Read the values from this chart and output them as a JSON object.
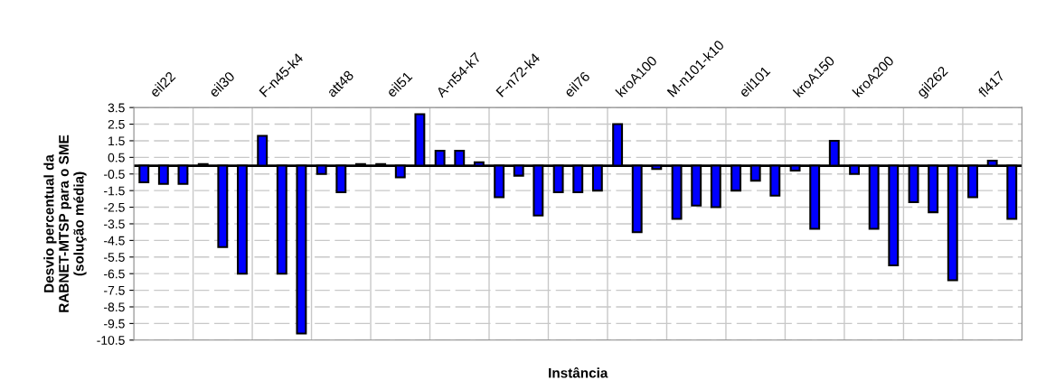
{
  "chart_data": {
    "type": "bar",
    "xlabel": "Instância",
    "ylabel": "Desvio percentual da\nRABNET-MTSP para o SME\n(solução média)",
    "categories": [
      "eil22",
      "eil30",
      "F-n45-k4",
      "att48",
      "eil51",
      "A-n54-k7",
      "F-n72-k4",
      "eil76",
      "kroA100",
      "M-n101-k10",
      "eil101",
      "kroA150",
      "kroA200",
      "gil262",
      "fl417"
    ],
    "series": [
      {
        "color": "#0000ff",
        "values": [
          -1.0,
          0.1,
          1.8,
          -0.5,
          0.1,
          0.9,
          -1.9,
          -1.6,
          2.5,
          -3.2,
          -1.5,
          -0.3,
          -0.5,
          -2.2,
          -1.9
        ]
      },
      {
        "color": "#0000ff",
        "values": [
          -1.1,
          -4.9,
          -6.5,
          -1.6,
          -0.7,
          0.9,
          -0.6,
          -1.6,
          -4.0,
          -2.4,
          -0.9,
          -3.8,
          -3.8,
          -2.8,
          0.3
        ]
      },
      {
        "color": "#0000ff",
        "values": [
          -1.1,
          -6.5,
          -10.1,
          0.1,
          3.1,
          0.2,
          -3.0,
          -1.5,
          -0.2,
          -2.5,
          -1.8,
          1.5,
          -6.0,
          -6.9,
          -3.2
        ]
      }
    ],
    "ylim": [
      -10.5,
      3.5
    ],
    "yticks": [
      -10.5,
      -9.5,
      -8.5,
      -7.5,
      -6.5,
      -5.5,
      -4.5,
      -3.5,
      -2.5,
      -1.5,
      -0.5,
      0.5,
      1.5,
      2.5,
      3.5
    ],
    "grid": true
  }
}
